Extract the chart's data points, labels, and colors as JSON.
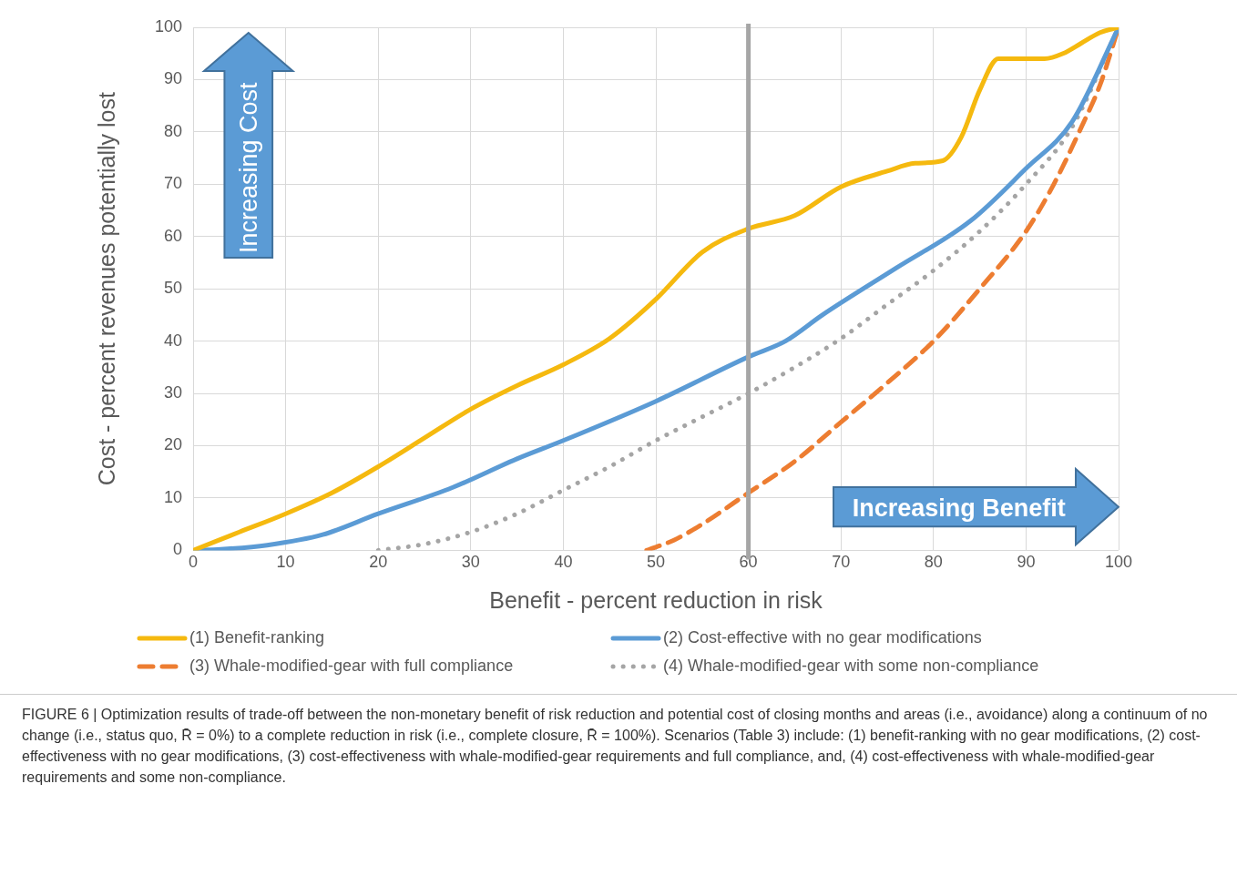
{
  "chart_data": {
    "type": "line",
    "xlabel": "Benefit - percent reduction in risk",
    "ylabel": "Cost - percent revenues potentially lost",
    "xlim": [
      0,
      100
    ],
    "xticks": [
      0,
      10,
      20,
      30,
      40,
      50,
      60,
      70,
      80,
      90,
      100
    ],
    "ylim": [
      0,
      100
    ],
    "yticks": [
      0,
      10,
      20,
      30,
      40,
      50,
      60,
      70,
      80,
      90,
      100
    ],
    "grid": true,
    "legend": "bottom",
    "marker": "none",
    "ref_lines": [
      {
        "axis": "x",
        "value": 60,
        "color": "#a6a6a6"
      }
    ],
    "annotations": [
      "Increasing Cost",
      "Increasing Benefit",
      "FIGURE 6 | Optimization results of trade-off between the non-monetary benefit of risk reduction and potential cost of closing months and areas (i.e., avoidance) along a continuum of no change (i.e., status quo, R̄ = 0%) to a complete reduction in risk (i.e., complete closure, R̄ = 100%). Scenarios (Table 3) include: (1) benefit-ranking with no gear modifications, (2) cost-effectiveness with no gear modifications, (3) cost-effectiveness with whale-modified-gear requirements and full compliance, and, (4) cost-effectiveness with whale-modified-gear requirements and some non-compliance."
    ],
    "series": [
      {
        "name": "(1) Benefit-ranking",
        "color": "#f5b90f",
        "line_style": "solid",
        "x": [
          0,
          5,
          10,
          15,
          20,
          25,
          30,
          35,
          40,
          45,
          50,
          55,
          60,
          65,
          70,
          75,
          78,
          81,
          83,
          85,
          87,
          89,
          92,
          94,
          96,
          98,
          100
        ],
        "values": [
          0,
          3.5,
          7,
          11,
          16,
          21.5,
          27,
          31.5,
          35.5,
          40.5,
          48,
          57,
          61.5,
          64,
          69.5,
          72.5,
          74,
          74.5,
          79,
          88,
          94,
          94,
          94,
          95,
          97,
          99,
          100
        ]
      },
      {
        "name": "(2) Cost-effective with no gear modifications",
        "color": "#5b9bd5",
        "line_style": "solid",
        "x": [
          0,
          3,
          8,
          14,
          20,
          28,
          35,
          40,
          50,
          60,
          64,
          68,
          76,
          84,
          90,
          95,
          100
        ],
        "values": [
          0,
          0.2,
          1,
          3,
          7,
          12,
          17.5,
          21,
          28.5,
          37,
          40,
          45,
          54,
          63,
          73,
          82,
          100
        ]
      },
      {
        "name": "(3) Whale-modified-gear with full compliance",
        "color": "#ed7d31",
        "line_style": "dashed",
        "x": [
          49,
          52,
          55,
          60,
          65,
          70,
          75,
          80,
          85,
          90,
          93,
          96,
          98,
          100
        ],
        "values": [
          0,
          2,
          5,
          11,
          17,
          24.5,
          32,
          40,
          50,
          61,
          70,
          81,
          89,
          100
        ]
      },
      {
        "name": "(4) Whale-modified-gear with some non-compliance",
        "color": "#a5a5a5",
        "line_style": "dotted",
        "x": [
          20,
          25,
          30,
          35,
          40,
          45,
          50,
          55,
          60,
          65,
          70,
          75,
          80,
          85,
          90,
          95,
          100
        ],
        "values": [
          0,
          1.2,
          3.5,
          7,
          11.5,
          16,
          21,
          25.5,
          30,
          35,
          40.5,
          47,
          53.5,
          61,
          70,
          81,
          100
        ]
      }
    ]
  }
}
